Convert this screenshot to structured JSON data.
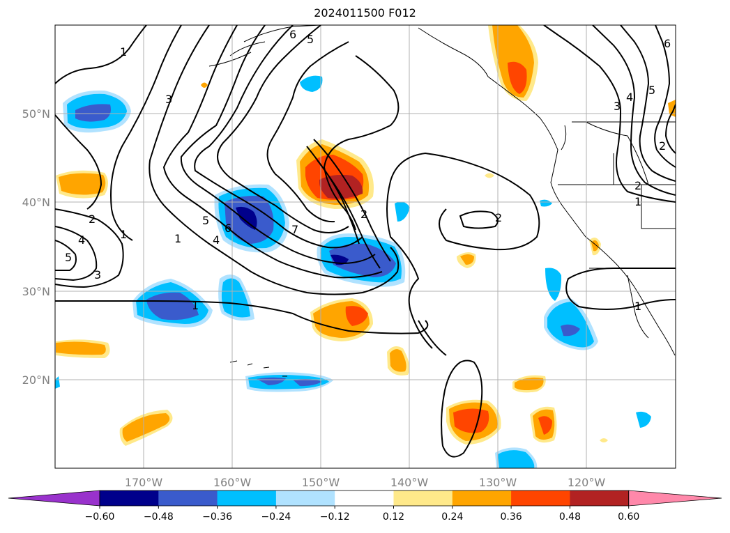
{
  "title": "2024011500 F012",
  "map": {
    "lon_labels": [
      "170°W",
      "160°W",
      "150°W",
      "140°W",
      "130°W",
      "120°W"
    ],
    "lat_labels": [
      "50°N",
      "40°N",
      "30°N",
      "20°N"
    ],
    "lon_range": [
      -180,
      -110
    ],
    "lat_range": [
      10,
      60
    ],
    "gridlines": true,
    "contour_labels": [
      "1",
      "3",
      "5",
      "6",
      "2",
      "4",
      "5",
      "3",
      "1",
      "2",
      "1",
      "5",
      "6",
      "4",
      "7",
      "1",
      "2",
      "2",
      "1",
      "2",
      "6",
      "4",
      "5",
      "3",
      "1"
    ]
  },
  "colorbar": {
    "tick_labels": [
      "−0.60",
      "−0.48",
      "−0.36",
      "−0.24",
      "−0.12",
      "0.12",
      "0.24",
      "0.36",
      "0.48",
      "0.60"
    ],
    "colors": [
      "#9932cc",
      "#00008b",
      "#3a5bcc",
      "#00bfff",
      "#b0e2ff",
      "#ffffff",
      "#ffe98a",
      "#ffa500",
      "#ff4500",
      "#b22222",
      "#ff88aa"
    ]
  }
}
